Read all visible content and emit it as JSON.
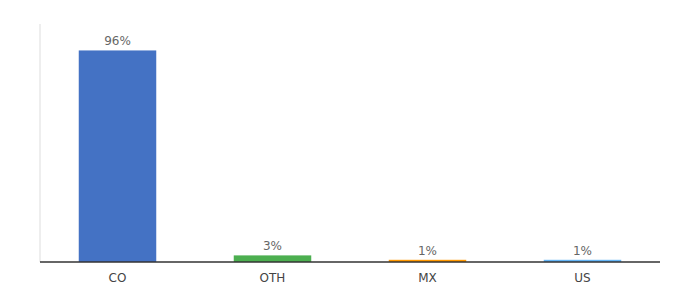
{
  "chart_data": {
    "type": "bar",
    "categories": [
      "CO",
      "OTH",
      "MX",
      "US"
    ],
    "values": [
      96,
      3,
      1,
      1
    ],
    "value_labels": [
      "96%",
      "3%",
      "1%",
      "1%"
    ],
    "colors": [
      "#4472c4",
      "#4caf50",
      "#ff9800",
      "#64b5f6"
    ],
    "ylim": [
      0,
      108
    ],
    "data_labels": true,
    "tick_labels": "x"
  }
}
